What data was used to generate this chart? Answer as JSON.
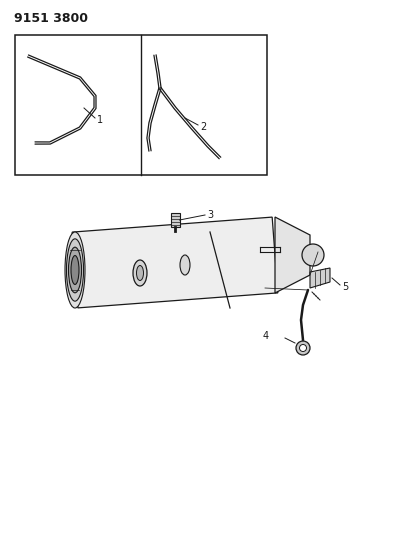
{
  "title": "9151 3800",
  "bg_color": "#ffffff",
  "line_color": "#1a1a1a",
  "gray_light": "#d8d8d8",
  "gray_mid": "#b8b8b8",
  "gray_dark": "#909090",
  "title_fontsize": 9,
  "label_fontsize": 7,
  "fig_width": 4.11,
  "fig_height": 5.33,
  "dpi": 100
}
